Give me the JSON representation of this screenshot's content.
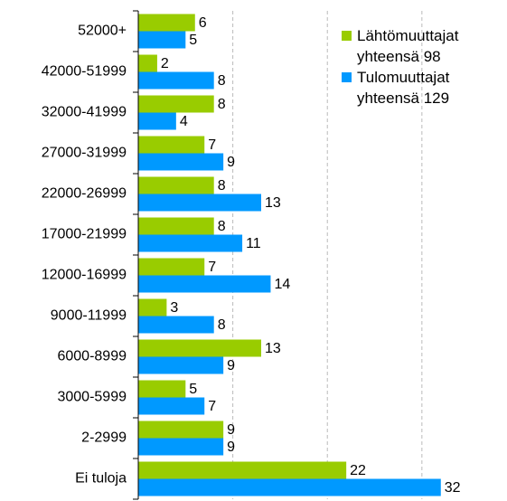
{
  "chart_data": {
    "type": "barh",
    "categories": [
      "52000+",
      "42000-51999",
      "32000-41999",
      "27000-31999",
      "22000-26999",
      "17000-21999",
      "12000-16999",
      "9000-11999",
      "6000-8999",
      "3000-5999",
      "2-2999",
      "Ei tuloja"
    ],
    "series": [
      {
        "name": "Lähtömuuttajat yhteensä 98",
        "color": "#99cc00",
        "values": [
          6,
          2,
          8,
          7,
          8,
          8,
          7,
          3,
          13,
          5,
          9,
          22
        ]
      },
      {
        "name": "Tulomuuttajat yhteensä 129",
        "color": "#0099ff",
        "values": [
          5,
          8,
          4,
          9,
          13,
          11,
          14,
          8,
          9,
          7,
          9,
          32
        ]
      }
    ],
    "xlim": [
      0,
      39
    ],
    "xticks": [
      0,
      10,
      20,
      30
    ],
    "grid": true,
    "legend": "upper right"
  }
}
